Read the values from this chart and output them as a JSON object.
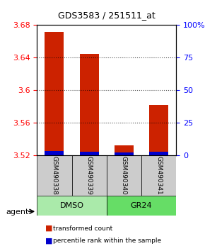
{
  "title": "GDS3583 / 251511_at",
  "samples": [
    "GSM490338",
    "GSM490339",
    "GSM490340",
    "GSM490341"
  ],
  "groups": [
    "DMSO",
    "DMSO",
    "GR24",
    "GR24"
  ],
  "group_labels": [
    "DMSO",
    "GR24"
  ],
  "group_colors": [
    "#90ee90",
    "#4ddd4d"
  ],
  "bar_color": "#cc2200",
  "percentile_color": "#0000cc",
  "ylim_left": [
    3.52,
    3.68
  ],
  "yticks_left": [
    3.52,
    3.56,
    3.6,
    3.64,
    3.68
  ],
  "ylim_right": [
    0,
    100
  ],
  "yticks_right": [
    0,
    25,
    50,
    75,
    100
  ],
  "ytick_labels_right": [
    "0",
    "25",
    "50",
    "75",
    "100%"
  ],
  "red_values": [
    3.672,
    3.645,
    3.533,
    3.582
  ],
  "blue_values": [
    3.526,
    3.525,
    3.524,
    3.525
  ],
  "base_value": 3.52,
  "bar_width": 0.55,
  "sample_box_color": "#cccccc",
  "group_box_colors": [
    "#aaeaaa",
    "#55dd55"
  ],
  "legend_red": "transformed count",
  "legend_blue": "percentile rank within the sample",
  "agent_label": "agent"
}
